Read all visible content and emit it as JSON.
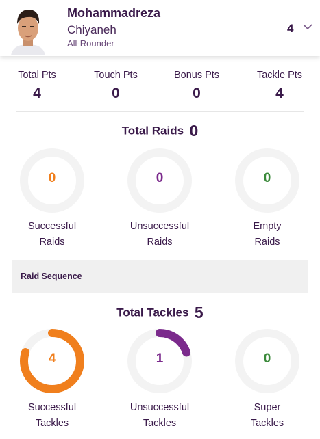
{
  "player": {
    "first_name": "Mohammadreza",
    "last_name": "Chiyaneh",
    "role": "All-Rounder",
    "jersey": "4"
  },
  "points": [
    {
      "label": "Total Pts",
      "value": "4"
    },
    {
      "label": "Touch Pts",
      "value": "0"
    },
    {
      "label": "Bonus Pts",
      "value": "0"
    },
    {
      "label": "Tackle Pts",
      "value": "4"
    }
  ],
  "raids": {
    "title": "Total Raids",
    "total": "0",
    "stats": [
      {
        "value": "0",
        "line1": "Successful",
        "line2": "Raids",
        "fraction": 0,
        "color": "#f07f1d"
      },
      {
        "value": "0",
        "line1": "Unsuccessful",
        "line2": "Raids",
        "fraction": 0,
        "color": "#7b2a8c"
      },
      {
        "value": "0",
        "line1": "Empty",
        "line2": "Raids",
        "fraction": 0,
        "color": "#3b8a3b"
      }
    ]
  },
  "raid_sequence": {
    "label": "Raid Sequence"
  },
  "tackles": {
    "title": "Total Tackles",
    "total": "5",
    "stats": [
      {
        "value": "4",
        "line1": "Successful",
        "line2": "Tackles",
        "fraction": 0.8,
        "color": "#f07f1d"
      },
      {
        "value": "1",
        "line1": "Unsuccessful",
        "line2": "Tackles",
        "fraction": 0.2,
        "color": "#7b2a8c"
      },
      {
        "value": "0",
        "line1": "Super",
        "line2": "Tackles",
        "fraction": 0,
        "color": "#3b8a3b"
      }
    ]
  }
}
